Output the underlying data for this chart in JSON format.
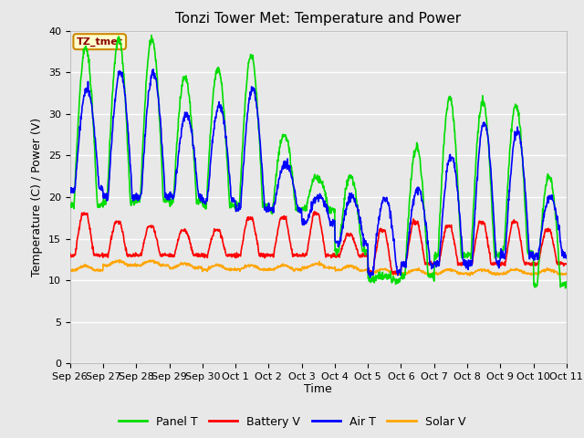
{
  "title": "Tonzi Tower Met: Temperature and Power",
  "xlabel": "Time",
  "ylabel": "Temperature (C) / Power (V)",
  "ylim": [
    0,
    40
  ],
  "yticks": [
    0,
    5,
    10,
    15,
    20,
    25,
    30,
    35,
    40
  ],
  "legend_label": "TZ_tmet",
  "series": {
    "panel_t": {
      "label": "Panel T",
      "color": "#00DD00",
      "lw": 1.2
    },
    "battery_v": {
      "label": "Battery V",
      "color": "#FF0000",
      "lw": 1.2
    },
    "air_t": {
      "label": "Air T",
      "color": "#0000FF",
      "lw": 1.2
    },
    "solar_v": {
      "label": "Solar V",
      "color": "#FFA500",
      "lw": 1.2
    }
  },
  "fig_bg": "#E8E8E8",
  "plot_bg": "#E8E8E8",
  "grid_color": "#FFFFFF",
  "xtick_labels": [
    "Sep 26",
    "Sep 27",
    "Sep 28",
    "Sep 29",
    "Sep 30",
    "Oct 1",
    "Oct 2",
    "Oct 3",
    "Oct 4",
    "Oct 5",
    "Oct 6",
    "Oct 7",
    "Oct 8",
    "Oct 9",
    "Oct 10",
    "Oct 11"
  ],
  "title_fontsize": 11,
  "axis_label_fontsize": 9,
  "tick_fontsize": 8,
  "n_days": 15,
  "panel_peaks": [
    38,
    39,
    39,
    34.5,
    35.5,
    37,
    27.5,
    22.5,
    22.5,
    10.5,
    26,
    32,
    31.5,
    31,
    22.5
  ],
  "panel_nights": [
    19,
    19.5,
    19.5,
    19.5,
    19,
    19,
    18.5,
    18.5,
    13.5,
    10,
    10.5,
    13,
    13,
    13.5,
    9.5
  ],
  "air_peaks": [
    33,
    35,
    35,
    30,
    31,
    33,
    24,
    20,
    20,
    20,
    21,
    25,
    29,
    28,
    20
  ],
  "air_nights": [
    21,
    20,
    20,
    20,
    19.5,
    18.5,
    18.5,
    17,
    14.5,
    11,
    12,
    12,
    12,
    13,
    13
  ],
  "battery_peaks": [
    18,
    17,
    16.5,
    16,
    16,
    17.5,
    17.5,
    18,
    15.5,
    16,
    17,
    16.5,
    17,
    17,
    16
  ],
  "battery_base": [
    13,
    13,
    13,
    13,
    13,
    13,
    13,
    13,
    13,
    11,
    12,
    12,
    12,
    12,
    12
  ],
  "solar_base": [
    11.2,
    11.8,
    11.8,
    11.5,
    11.3,
    11.3,
    11.3,
    11.5,
    11.2,
    10.8,
    10.8,
    10.8,
    10.8,
    10.8,
    10.8
  ]
}
